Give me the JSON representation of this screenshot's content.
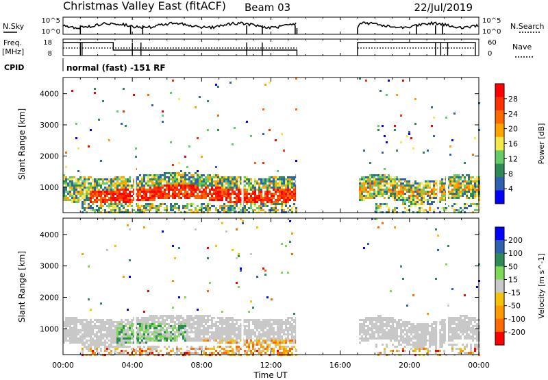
{
  "header": {
    "station": "Christmas Valley East (fitACF)",
    "beam": "Beam 03",
    "date": "22/Jul/2019"
  },
  "panels": {
    "nsky_label": "N.Sky",
    "nsky_ticks": [
      "10^5",
      "10^0"
    ],
    "nsearch_label": "N.Search",
    "nsearch_ticks": [
      "10^5",
      "10^0"
    ],
    "freq_label": [
      "Freq.",
      "[MHz]"
    ],
    "freq_ticks": [
      "18",
      "8"
    ],
    "nave_label": "Nave",
    "nave_ticks": [
      "60",
      "0"
    ],
    "cpid_label": "CPID",
    "cpid_text": "normal (fast) -151 RF"
  },
  "colors": {
    "power": [
      "#0000ff",
      "#3060b0",
      "#2e8b57",
      "#66cd66",
      "#f5e84c",
      "#ffa500",
      "#ff6a00",
      "#ff3000",
      "#ff0000"
    ],
    "velocity": [
      "#ff0000",
      "#ff6a00",
      "#ff9a00",
      "#f5c20a",
      "#c8c8c8",
      "#7ed957",
      "#2e8b57",
      "#3060b0",
      "#0000ff"
    ]
  },
  "chart_data": [
    {
      "type": "heatmap",
      "ylabel": "Slant Range [km]",
      "ylim": [
        180,
        4520
      ],
      "yticks": [
        "1000",
        "2000",
        "3000",
        "4000"
      ],
      "xlim_hours": [
        0,
        24
      ],
      "colorbar_label": "Power [dB]",
      "colorbar_ticks": [
        "4",
        "8",
        "12",
        "16",
        "20",
        "24",
        "28"
      ],
      "data_gap_hours": [
        13.5,
        17.0
      ],
      "bands": [
        {
          "from_h": 0.0,
          "to_h": 13.5,
          "range_km": [
            700,
            1500
          ],
          "level": "moderate"
        },
        {
          "from_h": 0.5,
          "to_h": 13.5,
          "range_km": [
            550,
            1100
          ],
          "level": "strong"
        },
        {
          "from_h": 17.0,
          "to_h": 23.8,
          "range_km": [
            500,
            1400
          ],
          "level": "moderate"
        }
      ]
    },
    {
      "type": "heatmap",
      "ylabel": "Slant Range [km]",
      "ylim": [
        180,
        4520
      ],
      "yticks": [
        "1000",
        "2000",
        "3000",
        "4000"
      ],
      "xlim_hours": [
        0,
        24
      ],
      "xticks": [
        "00:00",
        "04:00",
        "08:00",
        "12:00",
        "16:00",
        "20:00",
        "00:00"
      ],
      "xlabel": "Time UT",
      "colorbar_label": "Velocity [m s^-1]",
      "colorbar_ticks": [
        "200",
        "100",
        "50",
        "15",
        "-15",
        "-50",
        "-100",
        "-200"
      ],
      "data_gap_hours": [
        13.5,
        17.0
      ],
      "bands": [
        {
          "from_h": 0.0,
          "to_h": 13.5,
          "range_km": [
            700,
            1400
          ],
          "level": "ground scatter"
        },
        {
          "from_h": 3.0,
          "to_h": 7.0,
          "range_km": [
            550,
            1200
          ],
          "level": "positive"
        },
        {
          "from_h": 8.0,
          "to_h": 13.5,
          "range_km": [
            180,
            700
          ],
          "level": "negative"
        },
        {
          "from_h": 17.0,
          "to_h": 23.8,
          "range_km": [
            600,
            1300
          ],
          "level": "ground scatter"
        }
      ]
    }
  ]
}
